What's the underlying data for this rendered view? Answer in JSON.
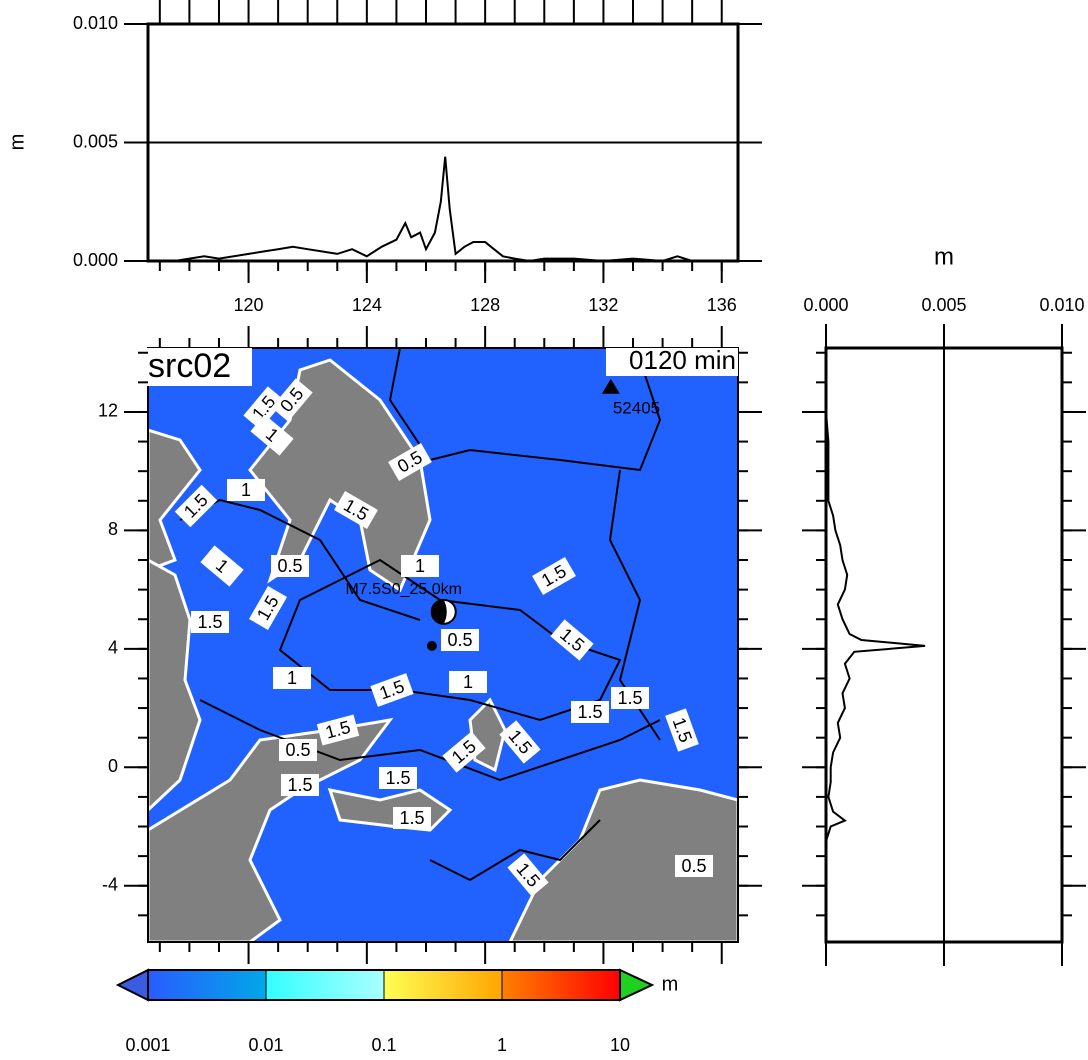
{
  "chart_data": [
    {
      "type": "line",
      "ylabel": "m",
      "x": [
        117.5,
        118,
        118.5,
        119,
        119.5,
        120,
        120.5,
        121,
        121.5,
        122,
        122.5,
        123,
        123.5,
        124,
        124.5,
        125,
        125.3,
        125.5,
        125.8,
        126,
        126.3,
        126.5,
        126.65,
        126.8,
        127,
        127.3,
        127.6,
        128,
        128.3,
        128.6,
        129,
        129.5,
        130,
        131,
        132,
        133,
        134,
        134.5,
        135,
        136
      ],
      "series": [
        {
          "color": "#000000",
          "values": [
            0,
            0.0001,
            0.0002,
            0.0001,
            0.0002,
            0.0003,
            0.0004,
            0.0005,
            0.0006,
            0.0005,
            0.0004,
            0.0003,
            0.0005,
            0.0002,
            0.0006,
            0.0009,
            0.0016,
            0.001,
            0.0012,
            0.0005,
            0.0012,
            0.0025,
            0.0044,
            0.0022,
            0.0003,
            0.0006,
            0.0008,
            0.0008,
            0.0005,
            0.0002,
            0.0001,
            0,
            0.0001,
            0.0001,
            0,
            0.0001,
            0,
            0.0002,
            0,
            0
          ]
        }
      ],
      "xlim": [
        116.6,
        136.55
      ],
      "xticks": [
        120,
        124,
        128,
        132,
        136
      ],
      "ylim": [
        0,
        0.01
      ],
      "yticks": [
        {
          "value": 0,
          "label": "0.000"
        },
        0.005,
        {
          "value": 0.01,
          "label": "0.010"
        }
      ],
      "grid": true
    },
    {
      "type": "map",
      "title": "src02",
      "time_label": "0120 min",
      "xlim": [
        116.6,
        136.55
      ],
      "ylim": [
        -5.9,
        14.16
      ],
      "yticks": [
        12,
        8,
        4,
        0,
        -4
      ],
      "ocean_color": "#2162ff",
      "land_color": "#808080",
      "station": {
        "name": "52405",
        "lon": 132.25,
        "lat": 12.85
      },
      "source": {
        "label": "M7.5S0_25.0km",
        "lon": 126.6,
        "lat": 5.25
      },
      "point": {
        "lon": 126.2,
        "lat": 4.1
      },
      "contour_labels": [
        "1.5",
        "0.5",
        "1",
        "0.5",
        "1",
        "1.5",
        "1.5",
        "1",
        "0.5",
        "1",
        "1.5",
        "1.5",
        "1.5",
        "0.5",
        "1.5",
        "1",
        "1.5",
        "1",
        "1.5",
        "1.5",
        "1.5",
        "1.5",
        "0.5",
        "1.5",
        "1.5",
        "1.5",
        "1.5",
        "1.5",
        "1.5",
        "0.5"
      ]
    },
    {
      "type": "profile",
      "xlabel": "m",
      "y": [
        13.5,
        12,
        11,
        10,
        9,
        8.5,
        8,
        7.5,
        7,
        6.5,
        6,
        5.5,
        5,
        4.5,
        4.3,
        4.1,
        3.9,
        3.5,
        3,
        2.5,
        2,
        1.5,
        1,
        0.5,
        0,
        -0.5,
        -1,
        -1.5,
        -1.8,
        -2,
        -2.5,
        -3,
        -4,
        -5
      ],
      "series": [
        {
          "color": "#000000",
          "values": [
            0,
            0,
            0.0001,
            0.0001,
            0.0001,
            0.0003,
            0.0004,
            0.0006,
            0.0007,
            0.0009,
            0.0008,
            0.0005,
            0.0007,
            0.001,
            0.0015,
            0.0042,
            0.0012,
            0.0008,
            0.001,
            0.0007,
            0.0008,
            0.0005,
            0.0006,
            0.0003,
            0.0002,
            0.0002,
            0.0001,
            0.0003,
            0.0008,
            0.0002,
            0,
            0,
            0,
            0
          ]
        }
      ],
      "xlim": [
        0,
        0.01
      ],
      "xticks": [
        {
          "value": 0,
          "label": "0.000"
        },
        0.005,
        {
          "value": 0.01,
          "label": "0.010"
        }
      ],
      "ylim": [
        -5.9,
        14.16
      ],
      "grid": true
    },
    {
      "type": "colorbar",
      "label": "m",
      "log": true,
      "xlim": [
        0.001,
        10
      ],
      "xticks": [
        0.001,
        0.01,
        0.1,
        1,
        10
      ],
      "colors": [
        [
          "#2a5cff",
          "#00a8e8"
        ],
        [
          "#33ffff",
          "#aaffff"
        ],
        [
          "#ffff55",
          "#ffa500"
        ],
        [
          "#ff8000",
          "#ff0000"
        ]
      ],
      "under_color": "#3a5ce0",
      "over_color": "#20d020"
    }
  ]
}
